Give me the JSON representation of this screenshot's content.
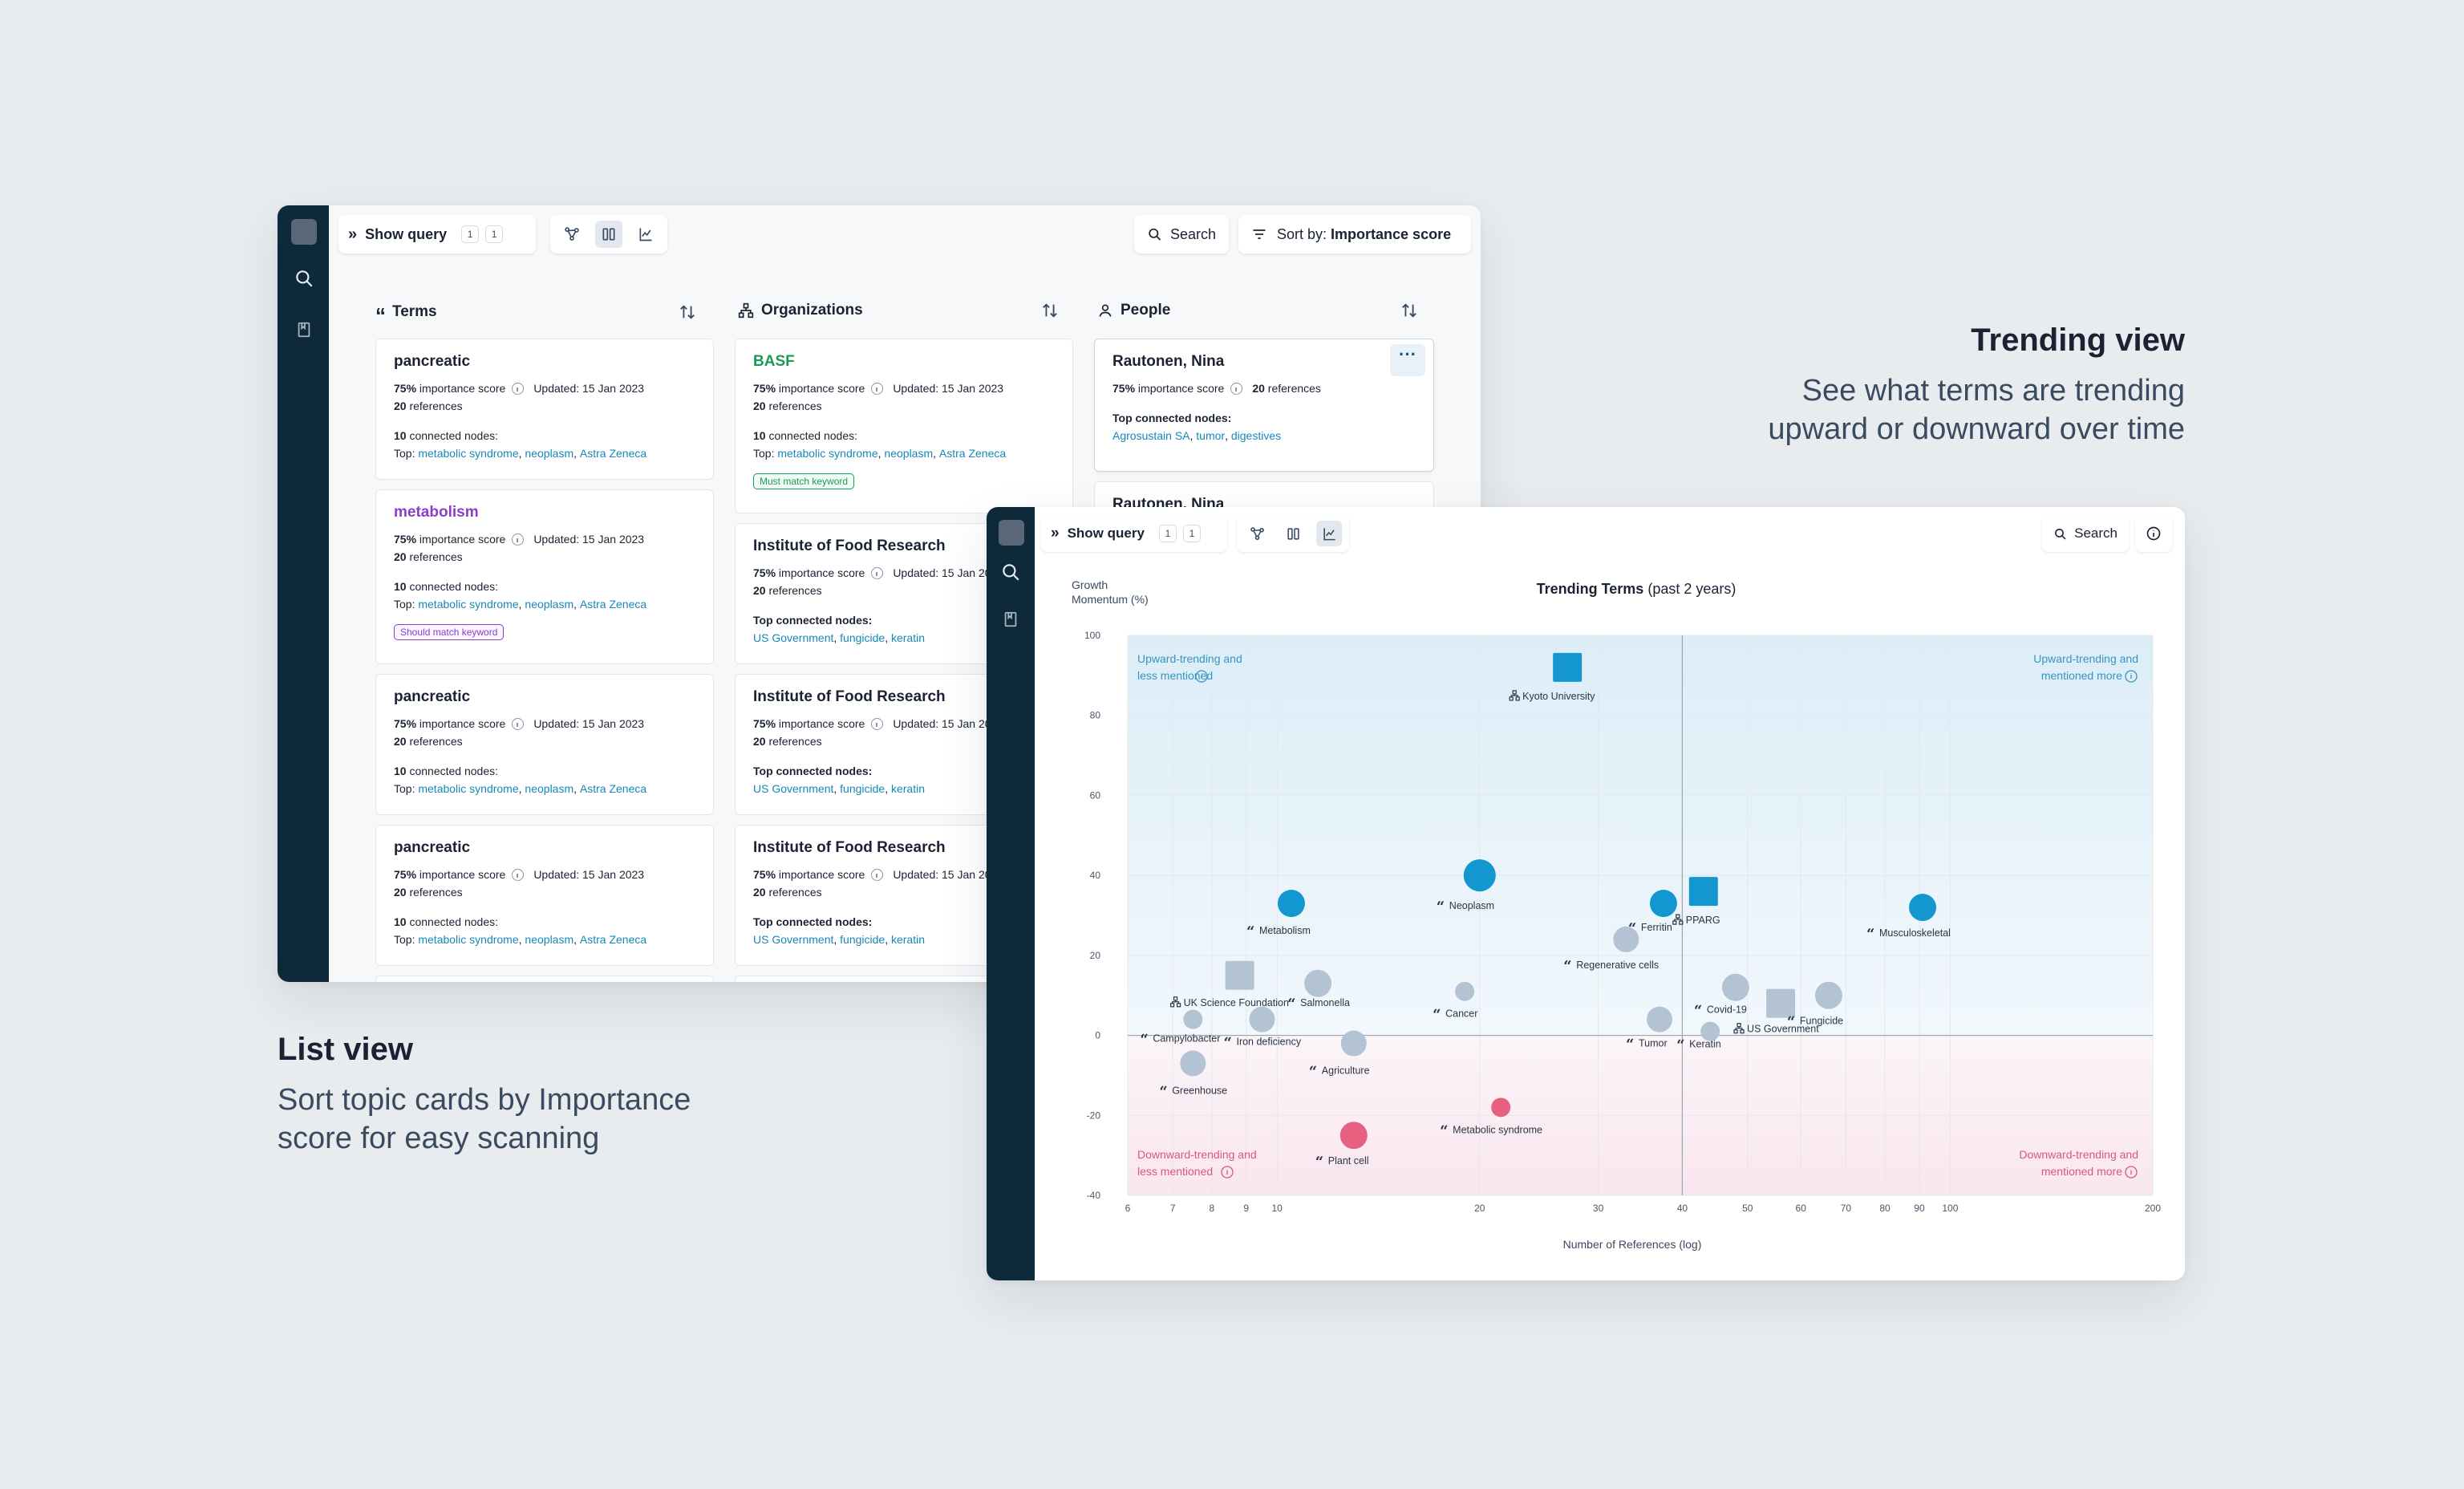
{
  "list_caption": {
    "title": "List view",
    "desc_line1": "Sort topic cards by Importance",
    "desc_line2": "score for easy scanning"
  },
  "trend_caption": {
    "title": "Trending view",
    "desc_line1": "See what terms are trending",
    "desc_line2": "upward or downward over time"
  },
  "list_window": {
    "toolbar": {
      "show_query": "Show query",
      "count1": "1",
      "count2": "1",
      "search": "Search",
      "sort_prefix": "Sort by: ",
      "sort_value": "Importance score"
    },
    "columns": {
      "terms": "Terms",
      "organizations": "Organizations",
      "people": "People"
    },
    "card_text": {
      "importance_pct": "75%",
      "importance_label": "importance score",
      "updated": "Updated: 15 Jan 2023",
      "refs_num": "20",
      "refs_label": "references",
      "connected_num": "10",
      "connected_label": "connected nodes:",
      "top": "Top:",
      "top_connected": "Top connected nodes:"
    },
    "terms_cards": [
      {
        "name": "pancreatic",
        "links": [
          "metabolic syndrome",
          "neoplasm",
          "Astra Zeneca"
        ],
        "tag": ""
      },
      {
        "name": "metabolism",
        "links": [
          "metabolic syndrome",
          "neoplasm",
          "Astra Zeneca"
        ],
        "tag": "Should match keyword"
      },
      {
        "name": "pancreatic",
        "links": [
          "metabolic syndrome",
          "neoplasm",
          "Astra Zeneca"
        ],
        "tag": ""
      },
      {
        "name": "pancreatic",
        "links": [
          "metabolic syndrome",
          "neoplasm",
          "Astra Zeneca"
        ],
        "tag": ""
      }
    ],
    "org_cards": [
      {
        "name": "BASF",
        "links": [
          "metabolic syndrome",
          "neoplasm",
          "Astra Zeneca"
        ],
        "tag": "Must match keyword"
      },
      {
        "name": "Institute of Food Research",
        "links": [
          "US Government",
          "fungicide",
          "keratin"
        ],
        "tag": ""
      },
      {
        "name": "Institute of Food Research",
        "links": [
          "US Government",
          "fungicide",
          "keratin"
        ],
        "tag": ""
      },
      {
        "name": "Institute of Food Research",
        "links": [
          "US Government",
          "fungicide",
          "keratin"
        ],
        "tag": ""
      }
    ],
    "people_cards": [
      {
        "name": "Rautonen, Nina",
        "links": [
          "Agrosustain SA",
          "tumor",
          "digestives"
        ]
      },
      {
        "name": "Rautonen, Nina"
      }
    ],
    "more_button": "···"
  },
  "trend_window": {
    "toolbar": {
      "show_query": "Show query",
      "count1": "1",
      "count2": "1",
      "search": "Search"
    }
  },
  "chart_data": {
    "type": "scatter",
    "title": "Trending Terms",
    "subtitle": "(past 2 years)",
    "ylabel_line1": "Growth",
    "ylabel_line2": "Momentum (%)",
    "xlabel": "Number of References (log)",
    "x_scale": "log",
    "xlim": [
      6,
      200
    ],
    "ylim": [
      -40,
      100
    ],
    "x_tick_values": [
      6,
      7,
      8,
      9,
      10,
      20,
      30,
      40,
      50,
      60,
      70,
      80,
      90,
      100,
      200
    ],
    "x_ticks": [
      "6",
      "7",
      "8",
      "9",
      "10",
      "20",
      "30",
      "40",
      "50",
      "60",
      "70",
      "80",
      "90",
      "100",
      "200"
    ],
    "y_tick_values": [
      -40,
      -20,
      0,
      20,
      40,
      60,
      80,
      100
    ],
    "y_ticks": [
      "-40",
      "-20",
      "0",
      "20",
      "40",
      "60",
      "80",
      "100"
    ],
    "grid": true,
    "quadrants": {
      "top_left": [
        "Upward-trending and",
        "less mentioned"
      ],
      "top_right": [
        "Upward-trending and",
        "mentioned more"
      ],
      "bottom_left": [
        "Downward-trending and",
        "less mentioned"
      ],
      "bottom_right": [
        "Downward-trending and",
        "mentioned more"
      ]
    },
    "colors": {
      "up": "#1496cf",
      "down": "#e8607f",
      "neutral": "#b4c3d4"
    },
    "points": [
      {
        "label": "Kyoto University",
        "x": 27,
        "y": 92,
        "kind": "org",
        "trend": "up"
      },
      {
        "label": "Neoplasm",
        "x": 20,
        "y": 40,
        "kind": "term",
        "trend": "up"
      },
      {
        "label": "Metabolism",
        "x": 10.5,
        "y": 33,
        "kind": "term",
        "trend": "up"
      },
      {
        "label": "Ferritin",
        "x": 37.5,
        "y": 33,
        "kind": "term",
        "trend": "up"
      },
      {
        "label": "PPARG",
        "x": 43,
        "y": 36,
        "kind": "org",
        "trend": "up"
      },
      {
        "label": "Musculoskeletal",
        "x": 91,
        "y": 32,
        "kind": "term",
        "trend": "up"
      },
      {
        "label": "Regenerative cells",
        "x": 33,
        "y": 24,
        "kind": "term",
        "trend": "neutral"
      },
      {
        "label": "UK Science Foundation",
        "x": 8.8,
        "y": 15,
        "kind": "org",
        "trend": "neutral"
      },
      {
        "label": "Salmonella",
        "x": 11.5,
        "y": 13,
        "kind": "term",
        "trend": "neutral"
      },
      {
        "label": "Cancer",
        "x": 19,
        "y": 11,
        "kind": "term",
        "trend": "neutral"
      },
      {
        "label": "Covid-19",
        "x": 48,
        "y": 12,
        "kind": "term",
        "trend": "neutral"
      },
      {
        "label": "US Government",
        "x": 56,
        "y": 8,
        "kind": "org",
        "trend": "neutral"
      },
      {
        "label": "Fungicide",
        "x": 66,
        "y": 10,
        "kind": "term",
        "trend": "neutral"
      },
      {
        "label": "Campylobacter",
        "x": 7.5,
        "y": 4,
        "kind": "term",
        "trend": "neutral"
      },
      {
        "label": "Iron deficiency",
        "x": 9.5,
        "y": 4,
        "kind": "term",
        "trend": "neutral"
      },
      {
        "label": "Tumor",
        "x": 37,
        "y": 4,
        "kind": "term",
        "trend": "neutral"
      },
      {
        "label": "Keratin",
        "x": 44,
        "y": 1,
        "kind": "term",
        "trend": "neutral"
      },
      {
        "label": "Agriculture",
        "x": 13,
        "y": -2,
        "kind": "term",
        "trend": "neutral"
      },
      {
        "label": "Greenhouse",
        "x": 7.5,
        "y": -7,
        "kind": "term",
        "trend": "neutral"
      },
      {
        "label": "Metabolic syndrome",
        "x": 21.5,
        "y": -18,
        "kind": "term",
        "trend": "down"
      },
      {
        "label": "Plant cell",
        "x": 13,
        "y": -25,
        "kind": "term",
        "trend": "down"
      }
    ]
  }
}
